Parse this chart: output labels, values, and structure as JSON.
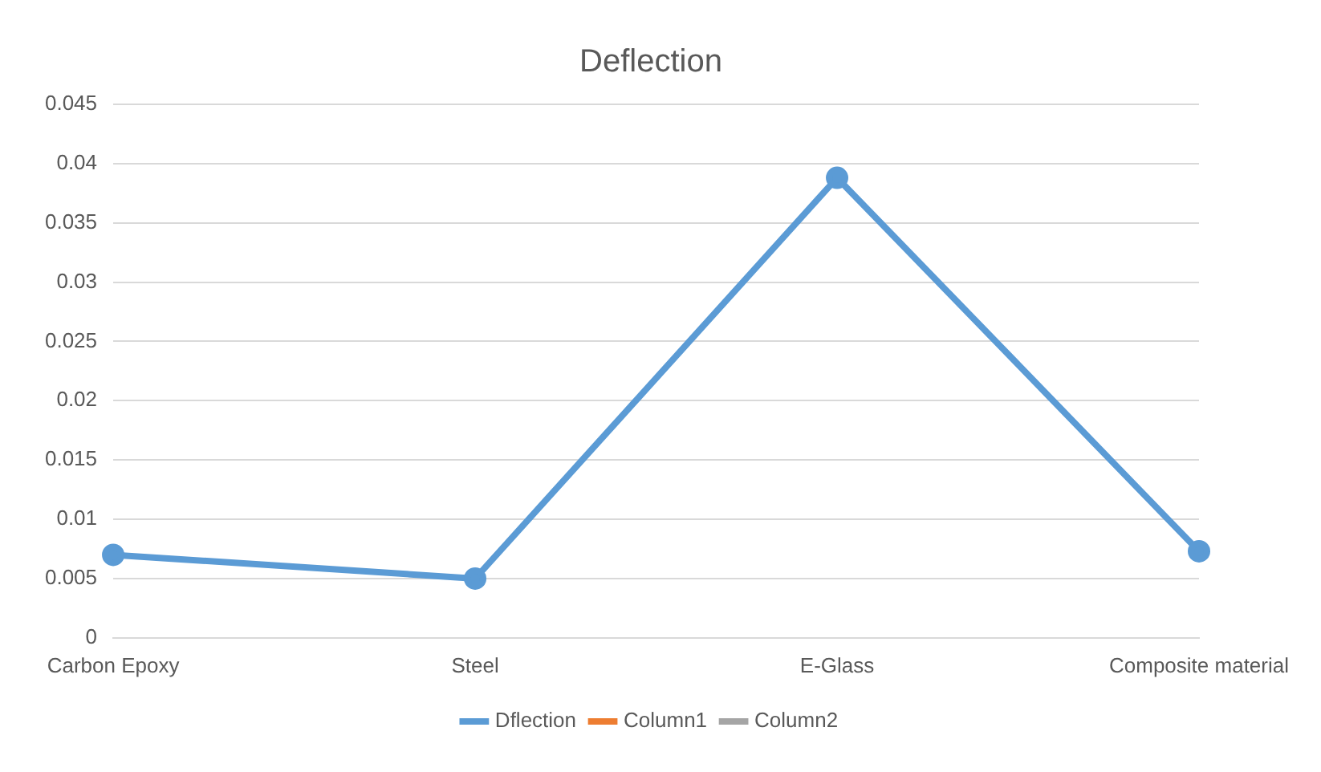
{
  "chart_data": {
    "type": "line",
    "title": "Deflection",
    "categories": [
      "Carbon Epoxy",
      "Steel",
      "E-Glass",
      "Composite material"
    ],
    "series": [
      {
        "name": "Dflection",
        "color": "#5b9bd5",
        "values": [
          0.007,
          0.005,
          0.0388,
          0.0073
        ]
      },
      {
        "name": "Column1",
        "color": "#ed7d31",
        "values": [
          null,
          null,
          null,
          null
        ]
      },
      {
        "name": "Column2",
        "color": "#a5a5a5",
        "values": [
          null,
          null,
          null,
          null
        ]
      }
    ],
    "ylim": [
      0,
      0.045
    ],
    "yticks": [
      0,
      0.005,
      0.01,
      0.015,
      0.02,
      0.025,
      0.03,
      0.035,
      0.04,
      0.045
    ],
    "grid": "y",
    "legend": "bottom",
    "marker": "circle",
    "line_style": "solid"
  }
}
